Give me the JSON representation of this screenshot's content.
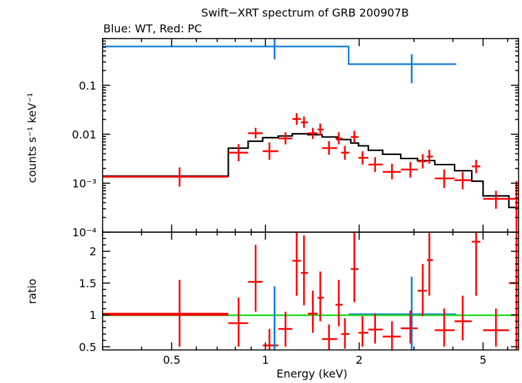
{
  "chart_data": {
    "type": "scatter",
    "title": "Swift−XRT spectrum of GRB 200907B",
    "subtitle": "Blue: WT, Red: PC",
    "xlabel": "Energy (keV)",
    "xscale": "log",
    "xlim": [
      0.3,
      6.5
    ],
    "x_ticks": [
      "0.5",
      "1",
      "2",
      "5"
    ],
    "colors": {
      "wt": "#0a7ad9",
      "pc": "#ff0000",
      "model": "#000000",
      "unity": "#22dd22"
    },
    "panels": [
      {
        "name": "spectrum",
        "ylabel": "counts s⁻¹ keV⁻¹",
        "yscale": "log",
        "ylim": [
          0.0001,
          0.9
        ],
        "y_ticks": [
          "0.1",
          "0.01",
          "10⁻³",
          "10⁻⁴"
        ],
        "series": [
          {
            "name": "PC data",
            "color": "#ff0000",
            "points": [
              {
                "x": 0.53,
                "xlo": 0.3,
                "xhi": 0.76,
                "y": 0.00135,
                "ylo": 0.00085,
                "yhi": 0.0021
              },
              {
                "x": 0.82,
                "xlo": 0.76,
                "xhi": 0.88,
                "y": 0.0042,
                "ylo": 0.0028,
                "yhi": 0.0063
              },
              {
                "x": 0.93,
                "xlo": 0.88,
                "xhi": 0.98,
                "y": 0.0105,
                "ylo": 0.0082,
                "yhi": 0.0135
              },
              {
                "x": 1.03,
                "xlo": 0.98,
                "xhi": 1.1,
                "y": 0.0045,
                "ylo": 0.003,
                "yhi": 0.0068
              },
              {
                "x": 1.16,
                "xlo": 1.1,
                "xhi": 1.22,
                "y": 0.0082,
                "ylo": 0.0062,
                "yhi": 0.011
              },
              {
                "x": 1.26,
                "xlo": 1.22,
                "xhi": 1.3,
                "y": 0.0205,
                "ylo": 0.0155,
                "yhi": 0.027
              },
              {
                "x": 1.33,
                "xlo": 1.3,
                "xhi": 1.37,
                "y": 0.0175,
                "ylo": 0.0135,
                "yhi": 0.023
              },
              {
                "x": 1.42,
                "xlo": 1.37,
                "xhi": 1.47,
                "y": 0.0105,
                "ylo": 0.008,
                "yhi": 0.0135
              },
              {
                "x": 1.5,
                "xlo": 1.47,
                "xhi": 1.54,
                "y": 0.0125,
                "ylo": 0.0095,
                "yhi": 0.0165
              },
              {
                "x": 1.6,
                "xlo": 1.52,
                "xhi": 1.7,
                "y": 0.0052,
                "ylo": 0.0038,
                "yhi": 0.0072
              },
              {
                "x": 1.72,
                "xlo": 1.68,
                "xhi": 1.77,
                "y": 0.0082,
                "ylo": 0.0062,
                "yhi": 0.011
              },
              {
                "x": 1.8,
                "xlo": 1.75,
                "xhi": 1.86,
                "y": 0.0042,
                "ylo": 0.003,
                "yhi": 0.0058
              },
              {
                "x": 1.93,
                "xlo": 1.88,
                "xhi": 1.99,
                "y": 0.0088,
                "ylo": 0.0068,
                "yhi": 0.0118
              },
              {
                "x": 2.05,
                "xlo": 1.99,
                "xhi": 2.14,
                "y": 0.0033,
                "ylo": 0.0024,
                "yhi": 0.0045
              },
              {
                "x": 2.25,
                "xlo": 2.14,
                "xhi": 2.38,
                "y": 0.0024,
                "ylo": 0.0017,
                "yhi": 0.0034
              },
              {
                "x": 2.55,
                "xlo": 2.38,
                "xhi": 2.72,
                "y": 0.0017,
                "ylo": 0.0012,
                "yhi": 0.0025
              },
              {
                "x": 2.92,
                "xlo": 2.72,
                "xhi": 3.08,
                "y": 0.0019,
                "ylo": 0.0013,
                "yhi": 0.0027
              },
              {
                "x": 3.2,
                "xlo": 3.08,
                "xhi": 3.3,
                "y": 0.0028,
                "ylo": 0.002,
                "yhi": 0.0039
              },
              {
                "x": 3.36,
                "xlo": 3.3,
                "xhi": 3.45,
                "y": 0.0035,
                "ylo": 0.0025,
                "yhi": 0.0048
              },
              {
                "x": 3.75,
                "xlo": 3.5,
                "xhi": 4.05,
                "y": 0.00125,
                "ylo": 0.0008,
                "yhi": 0.0019
              },
              {
                "x": 4.3,
                "xlo": 4.05,
                "xhi": 4.6,
                "y": 0.00115,
                "ylo": 0.00075,
                "yhi": 0.0017
              },
              {
                "x": 4.75,
                "xlo": 4.6,
                "xhi": 4.9,
                "y": 0.0022,
                "ylo": 0.0016,
                "yhi": 0.003
              },
              {
                "x": 5.5,
                "xlo": 5.0,
                "xhi": 6.05,
                "y": 0.00048,
                "ylo": 0.0003,
                "yhi": 0.0007
              },
              {
                "x": 6.4,
                "xlo": 6.05,
                "xhi": 6.5,
                "y": 0.00048,
                "ylo": 0.0001,
                "yhi": 0.0011
              }
            ]
          },
          {
            "name": "WT data",
            "color": "#0a7ad9",
            "points": [
              {
                "x": 1.07,
                "xlo": 1.07,
                "xhi": 1.07,
                "y": 0.9,
                "ylo": 0.34,
                "yhi": 0.9
              },
              {
                "x": 2.95,
                "xlo": 2.95,
                "xhi": 2.95,
                "y": 0.25,
                "ylo": 0.11,
                "yhi": 0.43
              }
            ]
          }
        ],
        "model_steps": [
          {
            "name": "WT model",
            "color": "#0a7ad9",
            "steps": [
              [
                0.3,
                0.62
              ],
              [
                1.85,
                0.27
              ],
              [
                4.1,
                0.27
              ]
            ]
          },
          {
            "name": "PC model",
            "color": "#000000",
            "steps": [
              [
                0.3,
                0.0014
              ],
              [
                0.76,
                0.0052
              ],
              [
                0.88,
                0.0072
              ],
              [
                0.98,
                0.0085
              ],
              [
                1.1,
                0.0092
              ],
              [
                1.22,
                0.0102
              ],
              [
                1.37,
                0.0098
              ],
              [
                1.52,
                0.0088
              ],
              [
                1.7,
                0.0078
              ],
              [
                1.88,
                0.0066
              ],
              [
                1.99,
                0.0058
              ],
              [
                2.14,
                0.0047
              ],
              [
                2.38,
                0.0039
              ],
              [
                2.72,
                0.0032
              ],
              [
                3.08,
                0.0029
              ],
              [
                3.5,
                0.0024
              ],
              [
                4.05,
                0.0018
              ],
              [
                4.6,
                0.0011
              ],
              [
                5.0,
                0.00055
              ],
              [
                6.05,
                0.00032
              ],
              [
                6.5,
                0.00032
              ]
            ]
          }
        ]
      },
      {
        "name": "ratio",
        "ylabel": "ratio",
        "yscale": "linear",
        "ylim": [
          0.45,
          2.3
        ],
        "y_ticks": [
          "0.5",
          "1",
          "1.5",
          "2"
        ],
        "series": [
          {
            "name": "PC ratio",
            "color": "#ff0000",
            "points": [
              {
                "x": 0.53,
                "xlo": 0.3,
                "xhi": 0.76,
                "y": 1.0,
                "ylo": 0.5,
                "yhi": 1.55
              },
              {
                "x": 0.82,
                "xlo": 0.76,
                "xhi": 0.88,
                "y": 0.87,
                "ylo": 0.5,
                "yhi": 1.27
              },
              {
                "x": 0.93,
                "xlo": 0.88,
                "xhi": 0.98,
                "y": 1.52,
                "ylo": 1.05,
                "yhi": 2.1
              },
              {
                "x": 1.03,
                "xlo": 0.98,
                "xhi": 1.1,
                "y": 0.52,
                "ylo": 0.45,
                "yhi": 0.78
              },
              {
                "x": 1.16,
                "xlo": 1.1,
                "xhi": 1.22,
                "y": 0.78,
                "ylo": 0.5,
                "yhi": 1.05
              },
              {
                "x": 1.26,
                "xlo": 1.22,
                "xhi": 1.3,
                "y": 1.85,
                "ylo": 1.3,
                "yhi": 2.3
              },
              {
                "x": 1.33,
                "xlo": 1.3,
                "xhi": 1.37,
                "y": 1.66,
                "ylo": 1.15,
                "yhi": 2.25
              },
              {
                "x": 1.42,
                "xlo": 1.37,
                "xhi": 1.47,
                "y": 1.02,
                "ylo": 0.72,
                "yhi": 1.38
              },
              {
                "x": 1.5,
                "xlo": 1.47,
                "xhi": 1.54,
                "y": 1.27,
                "ylo": 0.9,
                "yhi": 1.68
              },
              {
                "x": 1.6,
                "xlo": 1.52,
                "xhi": 1.7,
                "y": 0.62,
                "ylo": 0.45,
                "yhi": 0.85
              },
              {
                "x": 1.72,
                "xlo": 1.68,
                "xhi": 1.77,
                "y": 1.16,
                "ylo": 0.82,
                "yhi": 1.55
              },
              {
                "x": 1.8,
                "xlo": 1.75,
                "xhi": 1.86,
                "y": 0.7,
                "ylo": 0.47,
                "yhi": 0.95
              },
              {
                "x": 1.93,
                "xlo": 1.88,
                "xhi": 1.99,
                "y": 1.72,
                "ylo": 1.2,
                "yhi": 2.3
              },
              {
                "x": 2.05,
                "xlo": 1.99,
                "xhi": 2.14,
                "y": 0.72,
                "ylo": 0.5,
                "yhi": 0.98
              },
              {
                "x": 2.25,
                "xlo": 2.14,
                "xhi": 2.38,
                "y": 0.77,
                "ylo": 0.55,
                "yhi": 1.02
              },
              {
                "x": 2.55,
                "xlo": 2.38,
                "xhi": 2.72,
                "y": 0.66,
                "ylo": 0.45,
                "yhi": 0.9
              },
              {
                "x": 2.92,
                "xlo": 2.72,
                "xhi": 3.08,
                "y": 0.79,
                "ylo": 0.55,
                "yhi": 1.07
              },
              {
                "x": 3.2,
                "xlo": 3.08,
                "xhi": 3.3,
                "y": 1.38,
                "ylo": 0.98,
                "yhi": 1.8
              },
              {
                "x": 3.36,
                "xlo": 3.3,
                "xhi": 3.45,
                "y": 1.86,
                "ylo": 1.3,
                "yhi": 2.3
              },
              {
                "x": 3.75,
                "xlo": 3.5,
                "xhi": 4.05,
                "y": 0.76,
                "ylo": 0.5,
                "yhi": 1.1
              },
              {
                "x": 4.3,
                "xlo": 4.05,
                "xhi": 4.6,
                "y": 0.9,
                "ylo": 0.6,
                "yhi": 1.3
              },
              {
                "x": 4.75,
                "xlo": 4.6,
                "xhi": 4.9,
                "y": 2.15,
                "ylo": 1.3,
                "yhi": 2.3
              },
              {
                "x": 5.5,
                "xlo": 5.0,
                "xhi": 6.05,
                "y": 0.76,
                "ylo": 0.5,
                "yhi": 1.1
              },
              {
                "x": 6.4,
                "xlo": 6.05,
                "xhi": 6.5,
                "y": 1.5,
                "ylo": 0.45,
                "yhi": 2.3
              }
            ]
          },
          {
            "name": "WT ratio",
            "color": "#0a7ad9",
            "points": [
              {
                "x": 1.07,
                "xlo": 1.07,
                "xhi": 1.07,
                "y": 1.0,
                "ylo": 0.45,
                "yhi": 1.45
              },
              {
                "x": 2.95,
                "xlo": 2.95,
                "xhi": 2.95,
                "y": 1.0,
                "ylo": 0.45,
                "yhi": 1.6
              }
            ]
          }
        ],
        "unity_lines": [
          {
            "name": "PC unity",
            "color": "#ff0000",
            "xlo": 0.3,
            "xhi": 0.76,
            "y": 1.02
          },
          {
            "name": "WT unity",
            "color": "#0a7ad9",
            "xlo": 1.85,
            "xhi": 4.1,
            "y": 1.01
          },
          {
            "name": "reference",
            "color": "#22dd22",
            "xlo": 0.3,
            "xhi": 6.5,
            "y": 0.995
          }
        ]
      }
    ]
  }
}
